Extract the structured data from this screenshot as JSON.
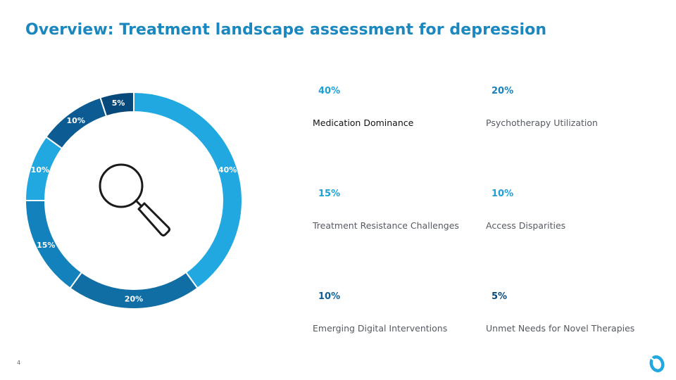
{
  "title": "Overview: Treatment landscape assessment for depression",
  "page_number": "4",
  "colors": {
    "title": "#1b87bf",
    "segments": [
      "#22a8e0",
      "#106ea5",
      "#1381bb",
      "#22a8e0",
      "#0c5b92",
      "#07497b"
    ],
    "stat_values": [
      "#1e9fd8",
      "#1882bd",
      "#1e9fd8",
      "#1e9fd8",
      "#0d5f97",
      "#07497b"
    ],
    "logo": "#22a8e0"
  },
  "icons": {
    "center": "magnifying-glass-icon",
    "logo": "brand-logo-icon"
  },
  "chart_data": {
    "type": "pie",
    "donut": true,
    "title": "",
    "categories": [
      "Medication Dominance",
      "Psychotherapy Utilization",
      "Treatment Resistance Challenges",
      "Access Disparities",
      "Emerging Digital Interventions",
      "Unmet Needs for Novel Therapies"
    ],
    "values": [
      40,
      20,
      15,
      10,
      10,
      5
    ],
    "data_labels": [
      "40%",
      "20%",
      "15%",
      "10%",
      "10%",
      "5%"
    ],
    "legend": "right"
  },
  "stats": [
    {
      "value": "40%",
      "label": "Medication Dominance"
    },
    {
      "value": "20%",
      "label": "Psychotherapy Utilization"
    },
    {
      "value": "15%",
      "label": "Treatment Resistance Challenges"
    },
    {
      "value": "10%",
      "label": "Access Disparities"
    },
    {
      "value": "10%",
      "label": "Emerging Digital Interventions"
    },
    {
      "value": "5%",
      "label": "Unmet Needs for Novel Therapies"
    }
  ]
}
